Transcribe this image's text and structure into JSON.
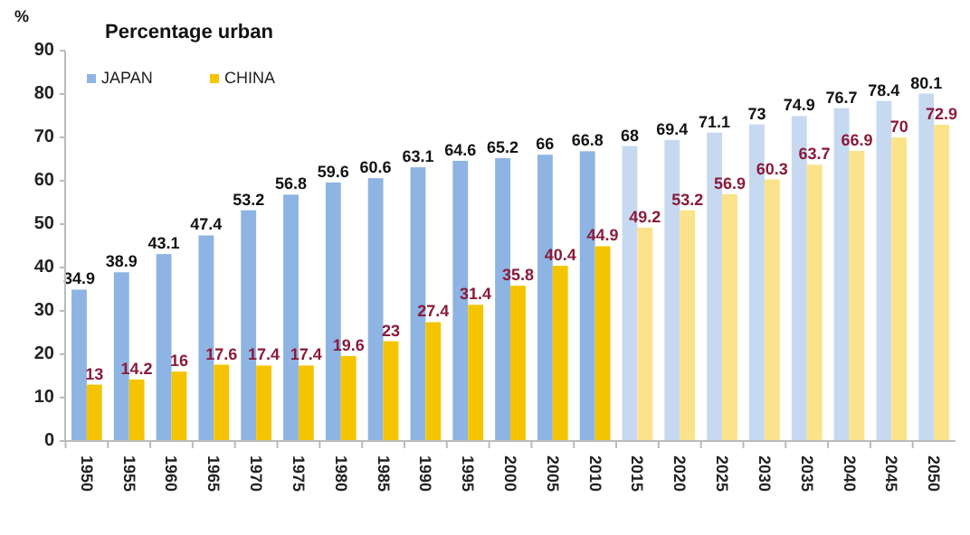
{
  "chart_data": {
    "type": "bar",
    "title": "Percentage urban",
    "ylabel": "%",
    "categories": [
      "1950",
      "1955",
      "1960",
      "1965",
      "1970",
      "1975",
      "1980",
      "1985",
      "1990",
      "1995",
      "2000",
      "2005",
      "2010",
      "2015",
      "2020",
      "2025",
      "2030",
      "2035",
      "2040",
      "2045",
      "2050"
    ],
    "series": [
      {
        "name": "JAPAN",
        "color": "#8eb4e3",
        "colors": [
          "#8eb4e3",
          "#8eb4e3",
          "#8eb4e3",
          "#8eb4e3",
          "#8eb4e3",
          "#8eb4e3",
          "#8eb4e3",
          "#8eb4e3",
          "#8eb4e3",
          "#8eb4e3",
          "#8eb4e3",
          "#8eb4e3",
          "#8eb4e3",
          "#c6d9f1",
          "#c6d9f1",
          "#c6d9f1",
          "#c6d9f1",
          "#c6d9f1",
          "#c6d9f1",
          "#c6d9f1",
          "#c6d9f1"
        ],
        "values": [
          34.9,
          38.9,
          43.1,
          47.4,
          53.2,
          56.8,
          59.6,
          60.6,
          63.1,
          64.6,
          65.2,
          66,
          66.8,
          68,
          69.4,
          71.1,
          73,
          74.9,
          76.7,
          78.4,
          80.1
        ]
      },
      {
        "name": "CHINA",
        "color": "#f5c400",
        "colors": [
          "#f5c400",
          "#f5c400",
          "#f5c400",
          "#f5c400",
          "#f5c400",
          "#f5c400",
          "#f5c400",
          "#f5c400",
          "#f5c400",
          "#f5c400",
          "#f5c400",
          "#f5c400",
          "#f5c400",
          "#fae38a",
          "#fae38a",
          "#fae38a",
          "#fae38a",
          "#fae38a",
          "#fae38a",
          "#fae38a",
          "#fae38a"
        ],
        "values": [
          13,
          14.2,
          16,
          17.6,
          17.4,
          17.4,
          19.6,
          23,
          27.4,
          31.4,
          35.8,
          40.4,
          44.9,
          49.2,
          53.2,
          56.9,
          60.3,
          63.7,
          66.9,
          70,
          72.9
        ]
      }
    ],
    "ylim": [
      0,
      90
    ],
    "yticks": [
      0,
      10,
      20,
      30,
      40,
      50,
      60,
      70,
      80,
      90
    ],
    "grid": false,
    "legend": "top left",
    "data_labels": true
  }
}
